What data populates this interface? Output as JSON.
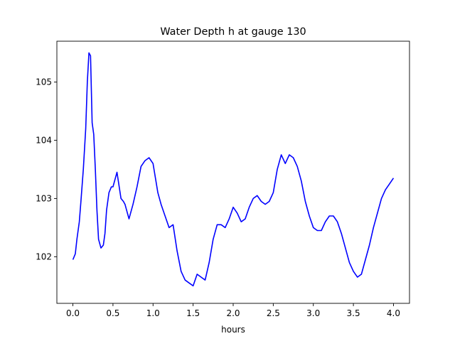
{
  "chart_data": {
    "type": "line",
    "title": "Water Depth h at gauge 130",
    "xlabel": "hours",
    "ylabel": "",
    "xlim": [
      -0.2,
      4.2
    ],
    "ylim": [
      101.2,
      105.7
    ],
    "xticks": [
      0.0,
      0.5,
      1.0,
      1.5,
      2.0,
      2.5,
      3.0,
      3.5,
      4.0
    ],
    "xtick_labels": [
      "0.0",
      "0.5",
      "1.0",
      "1.5",
      "2.0",
      "2.5",
      "3.0",
      "3.5",
      "4.0"
    ],
    "yticks": [
      102,
      103,
      104,
      105
    ],
    "ytick_labels": [
      "102",
      "103",
      "104",
      "105"
    ],
    "grid": false,
    "series": [
      {
        "color": "#0000ff",
        "x": [
          0.0,
          0.03,
          0.05,
          0.08,
          0.1,
          0.13,
          0.16,
          0.18,
          0.2,
          0.22,
          0.24,
          0.26,
          0.28,
          0.3,
          0.32,
          0.35,
          0.38,
          0.4,
          0.42,
          0.45,
          0.48,
          0.5,
          0.53,
          0.55,
          0.6,
          0.63,
          0.65,
          0.68,
          0.7,
          0.75,
          0.8,
          0.85,
          0.9,
          0.95,
          1.0,
          1.03,
          1.06,
          1.1,
          1.15,
          1.2,
          1.25,
          1.3,
          1.35,
          1.4,
          1.45,
          1.5,
          1.55,
          1.6,
          1.65,
          1.7,
          1.75,
          1.8,
          1.85,
          1.9,
          1.95,
          2.0,
          2.05,
          2.1,
          2.15,
          2.2,
          2.25,
          2.3,
          2.35,
          2.4,
          2.45,
          2.5,
          2.55,
          2.6,
          2.65,
          2.7,
          2.75,
          2.8,
          2.85,
          2.9,
          2.95,
          3.0,
          3.05,
          3.1,
          3.15,
          3.2,
          3.25,
          3.3,
          3.35,
          3.4,
          3.45,
          3.5,
          3.55,
          3.6,
          3.65,
          3.7,
          3.75,
          3.8,
          3.85,
          3.9,
          3.95,
          4.0
        ],
        "y": [
          101.95,
          102.05,
          102.3,
          102.6,
          102.95,
          103.5,
          104.2,
          105.0,
          105.5,
          105.45,
          104.3,
          104.1,
          103.5,
          102.8,
          102.3,
          102.15,
          102.2,
          102.4,
          102.8,
          103.1,
          103.2,
          103.2,
          103.35,
          103.45,
          103.0,
          102.95,
          102.9,
          102.75,
          102.65,
          102.9,
          103.2,
          103.55,
          103.65,
          103.7,
          103.6,
          103.35,
          103.1,
          102.9,
          102.7,
          102.5,
          102.55,
          102.1,
          101.75,
          101.6,
          101.55,
          101.5,
          101.7,
          101.65,
          101.6,
          101.9,
          102.3,
          102.55,
          102.55,
          102.5,
          102.65,
          102.85,
          102.75,
          102.6,
          102.65,
          102.85,
          103.0,
          103.05,
          102.95,
          102.9,
          102.95,
          103.1,
          103.5,
          103.75,
          103.6,
          103.75,
          103.7,
          103.55,
          103.3,
          102.95,
          102.7,
          102.5,
          102.45,
          102.45,
          102.6,
          102.7,
          102.7,
          102.6,
          102.4,
          102.15,
          101.9,
          101.75,
          101.65,
          101.7,
          101.95,
          102.2,
          102.5,
          102.75,
          103.0,
          103.15,
          103.25,
          103.35
        ]
      }
    ]
  }
}
